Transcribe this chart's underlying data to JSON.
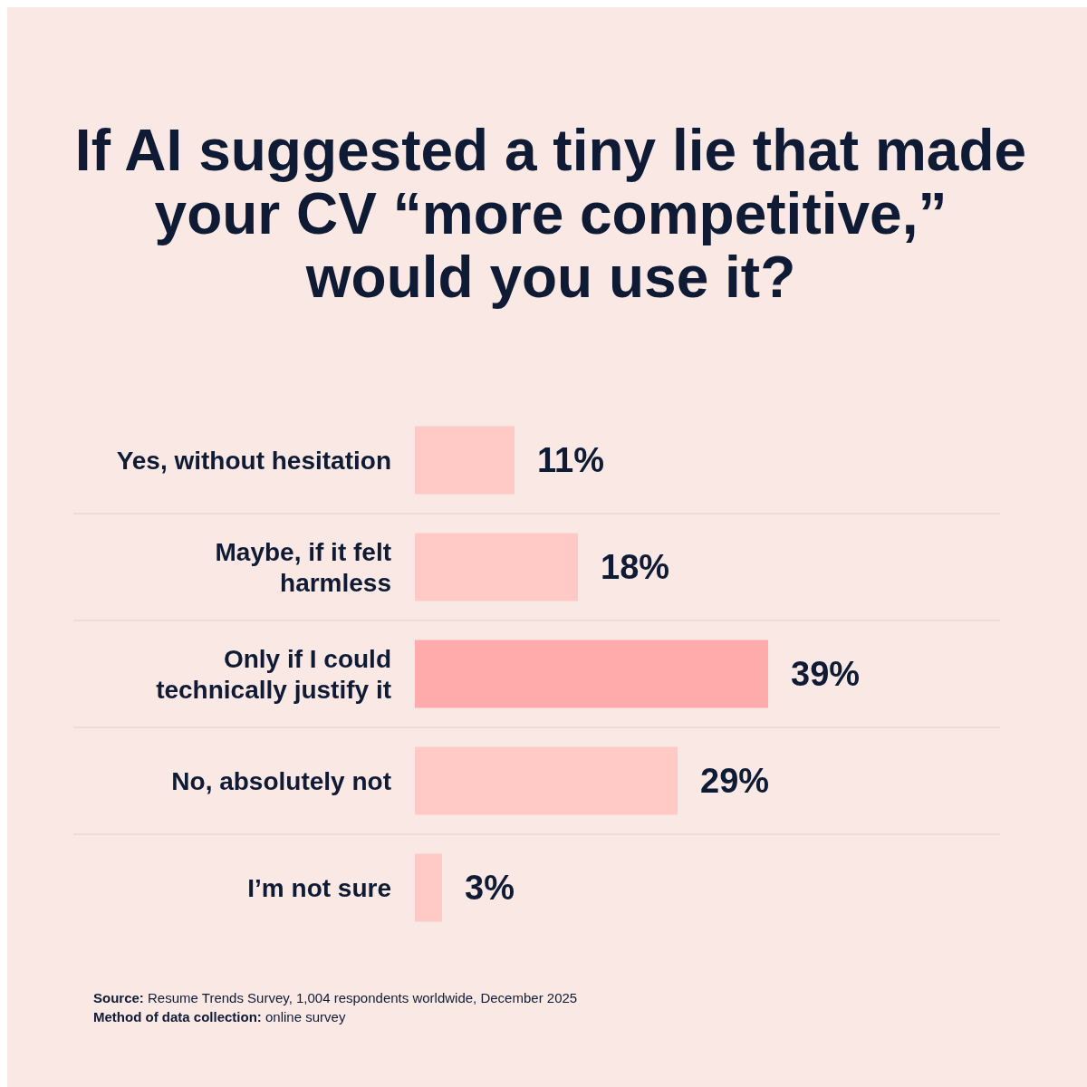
{
  "chart_data": {
    "type": "bar",
    "orientation": "horizontal",
    "title": "If AI suggested a tiny lie that made your CV “more competitive,” would you use it?",
    "categories": [
      "Yes, without hesitation",
      "Maybe, if it felt harmless",
      "Only if I could technically justify it",
      "No, absolutely not",
      "I’m not sure"
    ],
    "values": [
      11,
      18,
      39,
      29,
      3
    ],
    "colors": [
      "#ffc9c6",
      "#ffc9c6",
      "#ffabab",
      "#ffc9c6",
      "#ffc9c6"
    ],
    "value_labels": [
      "11%",
      "18%",
      "39%",
      "29%",
      "3%"
    ],
    "annotations": [
      "Source: Resume Trends Survey, 1,004 respondents worldwide, December 2025",
      "Method of data collection: online survey"
    ]
  }
}
